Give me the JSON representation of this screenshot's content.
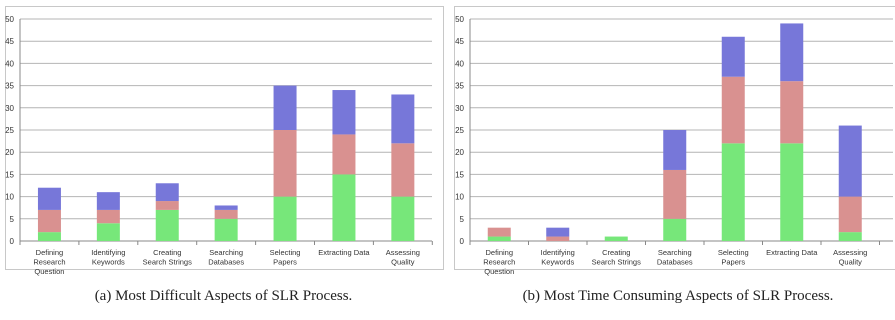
{
  "chart_data": [
    {
      "type": "bar",
      "stacked": true,
      "caption": "(a) Most Difficult Aspects of SLR Process.",
      "categories": [
        "Defining Research Question",
        "Identifying Keywords",
        "Creating Search Strings",
        "Searching Databases",
        "Selecting Papers",
        "Extracting Data",
        "Assessing Quality"
      ],
      "category_lines": [
        [
          "Defining",
          "Research",
          "Question"
        ],
        [
          "Identifying",
          "Keywords"
        ],
        [
          "Creating",
          "Search Strings"
        ],
        [
          "Searching",
          "Databases"
        ],
        [
          "Selecting",
          "Papers"
        ],
        [
          "Extracting Data"
        ],
        [
          "Assessing",
          "Quality"
        ]
      ],
      "series": [
        {
          "values": [
            2,
            4,
            7,
            5,
            10,
            15,
            10
          ],
          "color": "#77e77a"
        },
        {
          "values": [
            5,
            3,
            2,
            2,
            15,
            9,
            12
          ],
          "color": "#d99190"
        },
        {
          "values": [
            5,
            4,
            4,
            1,
            10,
            10,
            11
          ],
          "color": "#7777d9"
        }
      ],
      "ylim": [
        0,
        50
      ],
      "yticks": [
        0,
        5,
        10,
        15,
        20,
        25,
        30,
        35,
        40,
        45,
        50
      ],
      "grid": true,
      "legend": "none"
    },
    {
      "type": "bar",
      "stacked": true,
      "caption": "(b) Most Time Consuming Aspects of SLR Process.",
      "categories": [
        "Defining Research Question",
        "Identifying Keywords",
        "Creating Search Strings",
        "Searching Databases",
        "Selecting Papers",
        "Extracting Data",
        "Assessing Quality"
      ],
      "category_lines": [
        [
          "Defining",
          "Research",
          "Question"
        ],
        [
          "Identifying",
          "Keywords"
        ],
        [
          "Creating",
          "Search Strings"
        ],
        [
          "Searching",
          "Databases"
        ],
        [
          "Selecting",
          "Papers"
        ],
        [
          "Extracting Data"
        ],
        [
          "Assessing",
          "Quality"
        ]
      ],
      "series": [
        {
          "values": [
            1,
            0,
            1,
            5,
            22,
            22,
            2
          ],
          "color": "#77e77a"
        },
        {
          "values": [
            2,
            1,
            0,
            11,
            15,
            14,
            8
          ],
          "color": "#d99190"
        },
        {
          "values": [
            0,
            2,
            0,
            9,
            9,
            13,
            16
          ],
          "color": "#7777d9"
        }
      ],
      "ylim": [
        0,
        50
      ],
      "yticks": [
        0,
        5,
        10,
        15,
        20,
        25,
        30,
        35,
        40,
        45,
        50
      ],
      "grid": true,
      "legend": "none"
    }
  ]
}
